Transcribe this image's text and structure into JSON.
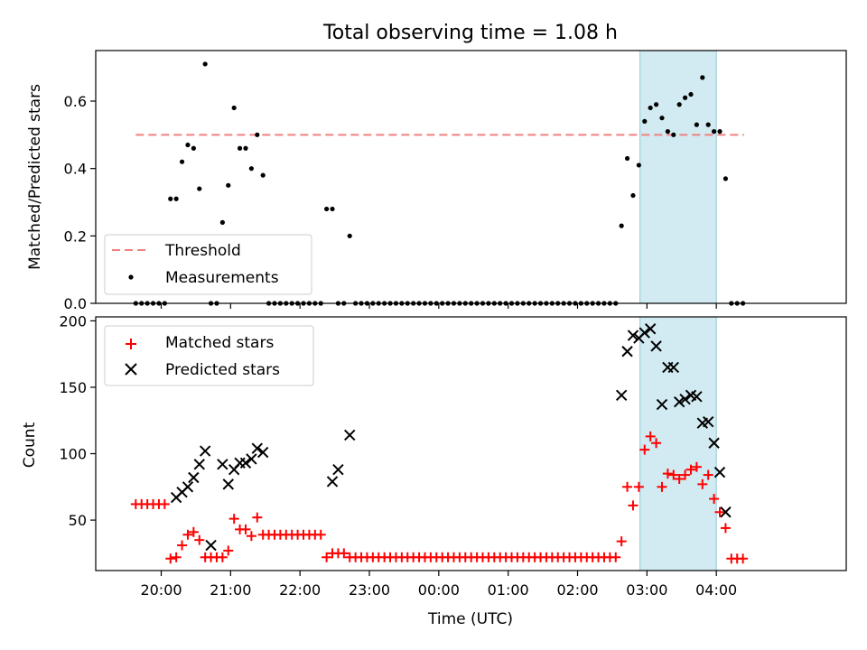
{
  "chart_data": [
    {
      "type": "scatter",
      "title": "Total observing time = 1.08 h",
      "xlabel": "",
      "ylabel": "Matched/Predicted stars",
      "ylim": [
        0,
        0.75
      ],
      "yticks": [
        "0.0",
        "0.2",
        "0.4",
        "0.6"
      ],
      "yticks_values": [
        0,
        0.2,
        0.4,
        0.6
      ],
      "threshold": {
        "name": "Threshold",
        "value": 0.5,
        "color": "#f08080",
        "x_range": [
          "19:38",
          "04:24"
        ]
      },
      "shaded_region": {
        "x_range": [
          "02:54",
          "04:00"
        ],
        "color": "#add8e6"
      },
      "legend": {
        "placement": "lower-left",
        "entries": [
          "Threshold",
          "Measurements"
        ]
      },
      "series": [
        {
          "name": "Measurements",
          "color": "#000000",
          "x": [
            "19:38",
            "19:43",
            "19:48",
            "19:53",
            "19:58",
            "20:03",
            "20:08",
            "20:13",
            "20:18",
            "20:23",
            "20:28",
            "20:33",
            "20:38",
            "20:43",
            "20:48",
            "20:53",
            "20:58",
            "21:03",
            "21:08",
            "21:13",
            "21:18",
            "21:23",
            "21:28",
            "21:33",
            "21:38",
            "21:43",
            "21:48",
            "21:53",
            "21:58",
            "22:03",
            "22:08",
            "22:13",
            "22:18",
            "22:23",
            "22:28",
            "22:33",
            "22:38",
            "22:43",
            "22:48",
            "22:53",
            "22:58",
            "23:03",
            "23:08",
            "23:13",
            "23:18",
            "23:23",
            "23:28",
            "23:33",
            "23:38",
            "23:43",
            "23:48",
            "23:53",
            "23:58",
            "00:03",
            "00:08",
            "00:13",
            "00:18",
            "00:23",
            "00:28",
            "00:33",
            "00:38",
            "00:43",
            "00:48",
            "00:53",
            "00:58",
            "01:03",
            "01:08",
            "01:13",
            "01:18",
            "01:23",
            "01:28",
            "01:33",
            "01:38",
            "01:43",
            "01:48",
            "01:53",
            "01:58",
            "02:03",
            "02:08",
            "02:13",
            "02:18",
            "02:23",
            "02:28",
            "02:33",
            "02:38",
            "02:43",
            "02:48",
            "02:53",
            "02:58",
            "03:03",
            "03:08",
            "03:13",
            "03:18",
            "03:23",
            "03:28",
            "03:33",
            "03:38",
            "03:43",
            "03:48",
            "03:53",
            "03:58",
            "04:03",
            "04:08",
            "04:13",
            "04:18",
            "04:23"
          ],
          "y": [
            0,
            0,
            0,
            0,
            0,
            0,
            0.31,
            0.31,
            0.42,
            0.47,
            0.46,
            0.34,
            0.71,
            0,
            0,
            0.24,
            0.35,
            0.58,
            0.46,
            0.46,
            0.4,
            0.5,
            0.38,
            0,
            0,
            0,
            0,
            0,
            0,
            0,
            0,
            0,
            0,
            0.28,
            0.28,
            0,
            0,
            0.2,
            0,
            0,
            0,
            0,
            0,
            0,
            0,
            0,
            0,
            0,
            0,
            0,
            0,
            0,
            0,
            0,
            0,
            0,
            0,
            0,
            0,
            0,
            0,
            0,
            0,
            0,
            0,
            0,
            0,
            0,
            0,
            0,
            0,
            0,
            0,
            0,
            0,
            0,
            0,
            0,
            0,
            0,
            0,
            0,
            0,
            0,
            0.23,
            0.43,
            0.32,
            0.41,
            0.54,
            0.58,
            0.59,
            0.55,
            0.51,
            0.5,
            0.59,
            0.61,
            0.62,
            0.53,
            0.67,
            0.53,
            0.51,
            0.51,
            0.37,
            0,
            0,
            0
          ]
        }
      ]
    },
    {
      "type": "scatter",
      "xlabel": "Time (UTC)",
      "ylabel": "Count",
      "ylim": [
        12,
        203
      ],
      "yticks": [
        "50",
        "100",
        "150",
        "200"
      ],
      "yticks_values": [
        50,
        100,
        150,
        200
      ],
      "xticks": [
        "20:00",
        "21:00",
        "22:00",
        "23:00",
        "00:00",
        "01:00",
        "02:00",
        "03:00",
        "04:00"
      ],
      "shaded_region": {
        "x_range": [
          "02:54",
          "04:00"
        ],
        "color": "#add8e6"
      },
      "legend": {
        "placement": "top-left",
        "entries": [
          "Matched stars",
          "Predicted stars"
        ]
      },
      "series": [
        {
          "name": "Matched stars",
          "marker": "plus",
          "color": "#ff0000",
          "x": [
            "19:38",
            "19:43",
            "19:48",
            "19:53",
            "19:58",
            "20:03",
            "20:08",
            "20:13",
            "20:18",
            "20:23",
            "20:28",
            "20:33",
            "20:38",
            "20:43",
            "20:48",
            "20:53",
            "20:58",
            "21:03",
            "21:08",
            "21:13",
            "21:18",
            "21:23",
            "21:28",
            "21:33",
            "21:38",
            "21:43",
            "21:48",
            "21:53",
            "21:58",
            "22:03",
            "22:08",
            "22:13",
            "22:18",
            "22:23",
            "22:28",
            "22:33",
            "22:38",
            "22:43",
            "22:48",
            "22:53",
            "22:58",
            "23:03",
            "23:08",
            "23:13",
            "23:18",
            "23:23",
            "23:28",
            "23:33",
            "23:38",
            "23:43",
            "23:48",
            "23:53",
            "23:58",
            "00:03",
            "00:08",
            "00:13",
            "00:18",
            "00:23",
            "00:28",
            "00:33",
            "00:38",
            "00:43",
            "00:48",
            "00:53",
            "00:58",
            "01:03",
            "01:08",
            "01:13",
            "01:18",
            "01:23",
            "01:28",
            "01:33",
            "01:38",
            "01:43",
            "01:48",
            "01:53",
            "01:58",
            "02:03",
            "02:08",
            "02:13",
            "02:18",
            "02:23",
            "02:28",
            "02:33",
            "02:38",
            "02:43",
            "02:48",
            "02:53",
            "02:58",
            "03:03",
            "03:08",
            "03:13",
            "03:18",
            "03:23",
            "03:28",
            "03:33",
            "03:38",
            "03:43",
            "03:48",
            "03:53",
            "03:58",
            "04:03",
            "04:08",
            "04:13",
            "04:18",
            "04:23"
          ],
          "y": [
            62,
            62,
            62,
            62,
            62,
            62,
            21,
            22,
            31,
            39,
            41,
            35,
            22,
            22,
            22,
            22,
            27,
            51,
            43,
            43,
            38,
            52,
            39,
            39,
            39,
            39,
            39,
            39,
            39,
            39,
            39,
            39,
            39,
            22,
            25,
            25,
            25,
            22,
            22,
            22,
            22,
            22,
            22,
            22,
            22,
            22,
            22,
            22,
            22,
            22,
            22,
            22,
            22,
            22,
            22,
            22,
            22,
            22,
            22,
            22,
            22,
            22,
            22,
            22,
            22,
            22,
            22,
            22,
            22,
            22,
            22,
            22,
            22,
            22,
            22,
            22,
            22,
            22,
            22,
            22,
            22,
            22,
            22,
            22,
            34,
            75,
            61,
            75,
            103,
            113,
            108,
            75,
            85,
            84,
            81,
            84,
            88,
            90,
            77,
            84,
            66,
            56,
            44,
            21,
            21,
            21
          ]
        },
        {
          "name": "Predicted stars",
          "marker": "x",
          "color": "#000000",
          "x": [
            "20:13",
            "20:18",
            "20:23",
            "20:28",
            "20:33",
            "20:38",
            "20:43",
            "20:53",
            "20:58",
            "21:03",
            "21:08",
            "21:13",
            "21:18",
            "21:23",
            "21:28",
            "22:28",
            "22:33",
            "22:43",
            "02:38",
            "02:43",
            "02:48",
            "02:53",
            "02:58",
            "03:03",
            "03:08",
            "03:13",
            "03:18",
            "03:23",
            "03:28",
            "03:33",
            "03:38",
            "03:43",
            "03:48",
            "03:53",
            "03:58",
            "04:03",
            "04:08"
          ],
          "y": [
            67,
            71,
            75,
            82,
            92,
            102,
            31,
            92,
            77,
            88,
            93,
            93,
            96,
            104,
            101,
            79,
            88,
            114,
            144,
            177,
            189,
            187,
            191,
            194,
            181,
            137,
            165,
            165,
            139,
            141,
            144,
            143,
            123,
            124,
            108,
            86,
            56
          ]
        }
      ]
    }
  ]
}
